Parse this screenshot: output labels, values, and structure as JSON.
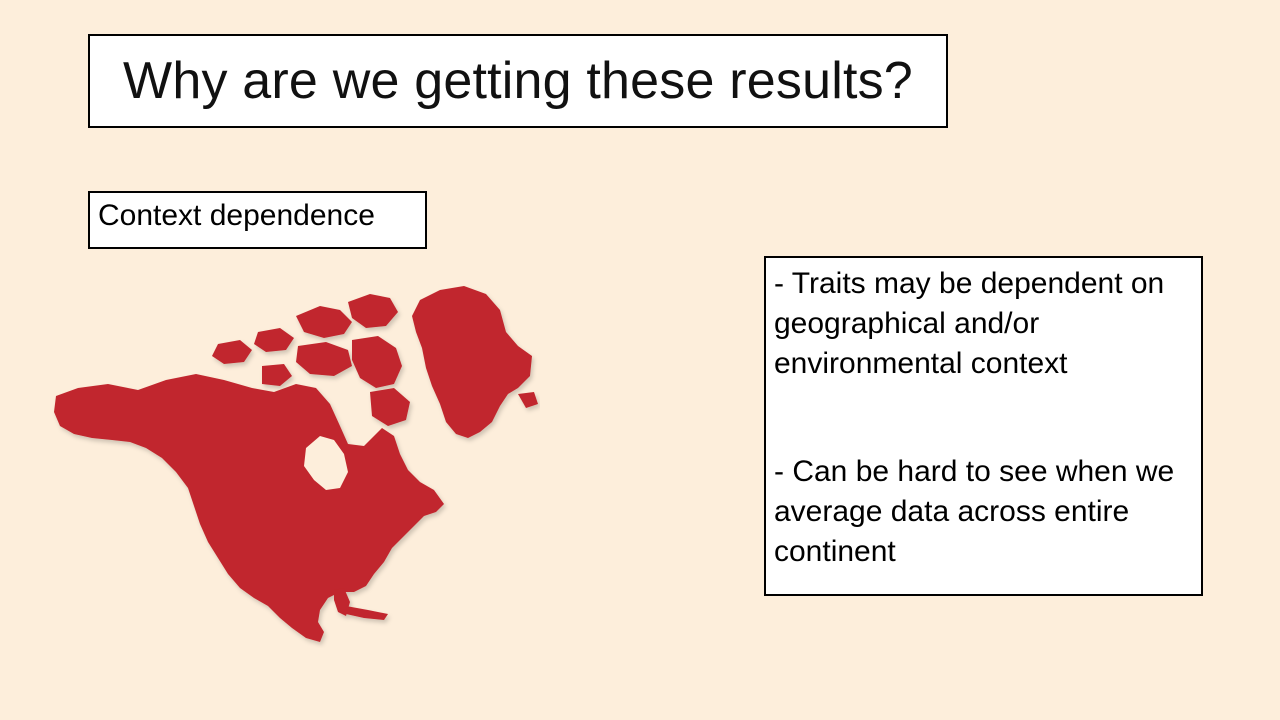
{
  "slide": {
    "title": "Why are we getting these results?",
    "subtitle": "Context dependence",
    "notes": [
      "- Traits may be dependent on geographical and/or environmental context",
      "- Can be hard to see when we average data across entire continent"
    ]
  },
  "colors": {
    "background": "#fdeedb",
    "map_fill": "#c1272d"
  }
}
